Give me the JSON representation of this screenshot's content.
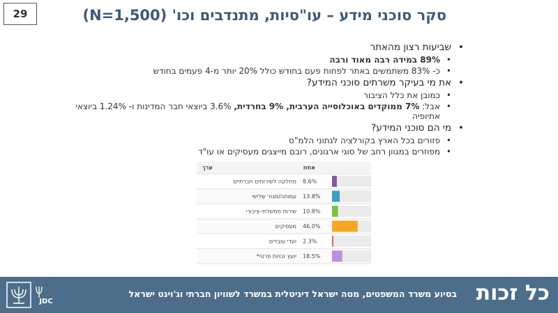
{
  "slide_number": "29",
  "title": "סקר סוכני מידע – עו\"סיות, מתנדבים וכו' (N=1,500)",
  "bullets": [
    {
      "text": "שביעות רצון מהאתר",
      "items": [
        {
          "segments": [
            {
              "text": "89% במידה רבה מאוד ורבה",
              "bold": true
            }
          ]
        },
        {
          "segments": [
            {
              "text": "כ- 83% משתמשים באתר לפחות פעם בחודש כולל 20% יותר מ-4 פעמים בחודש"
            }
          ]
        }
      ]
    },
    {
      "text": "את מי בעיקר משרתים סוכני המידע?",
      "items": [
        {
          "segments": [
            {
              "text": "כמובן את כלל הציבור"
            }
          ]
        },
        {
          "segments": [
            {
              "text": "אבל: "
            },
            {
              "text": "7% ממוקדים באוכלוסייה הערבית, 9% בחרדית,",
              "bold": true
            },
            {
              "text": " 3.6% ביוצאי חבר המדינות ו- 1.24% ביוצאי אתיופיה"
            }
          ]
        }
      ]
    },
    {
      "text": "מי הם סוכני המידע?",
      "items": [
        {
          "segments": [
            {
              "text": "פזורים בכל הארץ בקורלציה לנתוני הלמ\"ס"
            }
          ]
        },
        {
          "segments": [
            {
              "text": "מפוזרים במגוון רחב של סוגי ארגונים, רובם מייצגים מעסיקים או עו\"ד"
            }
          ]
        }
      ]
    }
  ],
  "table": {
    "headers": [
      "ערך",
      "אחוז"
    ],
    "xlim": [
      0,
      70
    ],
    "rows": [
      {
        "label": "מחלקה לשירותים חברתיים",
        "value": 8.6,
        "value_label": "8.6%",
        "color": "#7e5a9b"
      },
      {
        "label": "עמותה/מגזר שלישי",
        "value": 13.8,
        "value_label": "13.8%",
        "color": "#3aa0c8"
      },
      {
        "label": "שירות ממשלתי-ציבורי",
        "value": 10.8,
        "value_label": "10.8%",
        "color": "#7dc242"
      },
      {
        "label": "מעסיקים",
        "value": 46,
        "value_label": "46.0%",
        "color": "#f5a623"
      },
      {
        "label": "ועדי עובדים",
        "value": 2.3,
        "value_label": "2.3%",
        "color": "#e8546a"
      },
      {
        "label": "*יועץ זכויות פרטי",
        "value": 18.5,
        "value_label": "18.5%",
        "color": "#c08ee0"
      }
    ]
  },
  "footer": {
    "text": "בסיוע משרד המשפטים, מטה ישראל דיגיטלית במשרד לשוויון חברתי וג'וינט ישראל",
    "logo": "כל זכות",
    "partner_logo": "JDC"
  }
}
